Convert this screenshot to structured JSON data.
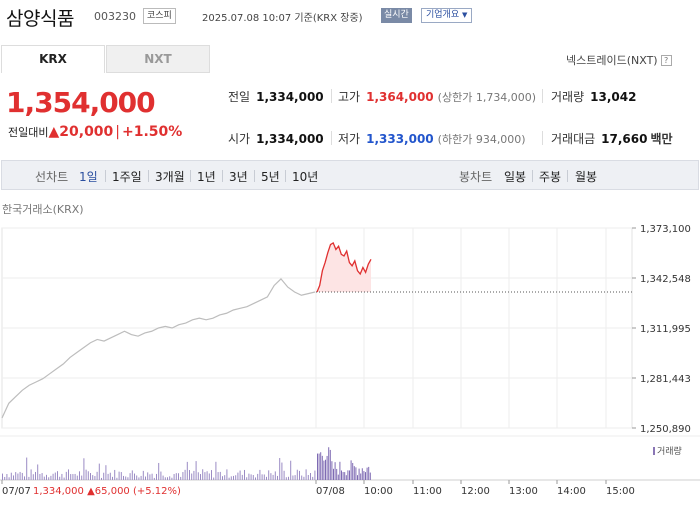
{
  "header": {
    "stock_name": "삼양식품",
    "stock_code": "003230",
    "market": "코스피",
    "datetime": "2025.07.08 10:07 기준(KRX 장중)",
    "realtime_label": "실시간",
    "company_overview": "기업개요"
  },
  "tabs": {
    "krx": "KRX",
    "nxt": "NXT"
  },
  "nextrade_link": "넥스트레이드(NXT)",
  "help_glyph": "?",
  "quote": {
    "price": "1,354,000",
    "change_label": "전일대비",
    "change_value": "20,000",
    "change_pct": "+1.50%",
    "up_symbol": "▲"
  },
  "metrics": {
    "prev_close_label": "전일",
    "prev_close": "1,334,000",
    "high_label": "고가",
    "high": "1,364,000",
    "upper_limit": "(상한가 1,734,000)",
    "volume_label": "거래량",
    "volume": "13,042",
    "open_label": "시가",
    "open": "1,334,000",
    "low_label": "저가",
    "low": "1,333,000",
    "lower_limit": "(하한가 934,000)",
    "trade_value_label": "거래대금",
    "trade_value": "17,660",
    "trade_value_unit": "백만"
  },
  "period_bar": {
    "line_label": "선차트",
    "line_options": [
      "1일",
      "1주일",
      "3개월",
      "1년",
      "3년",
      "5년",
      "10년"
    ],
    "selected": "1일",
    "candle_label": "봉차트",
    "candle_options": [
      "일봉",
      "주봉",
      "월봉"
    ]
  },
  "chart_data": {
    "type": "line",
    "source_label": "한국거래소(KRX)",
    "y_ticks": [
      "1,373,100",
      "1,342,548",
      "1,311,995",
      "1,281,443",
      "1,250,890"
    ],
    "ylim": [
      1250890,
      1373100
    ],
    "x_labels": [
      "07/07",
      "07/08",
      "10:00",
      "11:00",
      "12:00",
      "13:00",
      "14:00",
      "15:00"
    ],
    "volume_label": "거래량",
    "prev_day_summary": {
      "date": "07/07",
      "close": "1,334,000",
      "change": "65,000",
      "pct": "(+5.12%)"
    },
    "reference_line": 1334000,
    "series": [
      {
        "segment": "previous_day",
        "color": "#bdbdbd",
        "values": [
          1257000,
          1266000,
          1270000,
          1274000,
          1277000,
          1279000,
          1281000,
          1284000,
          1287000,
          1290000,
          1294000,
          1297000,
          1300000,
          1303000,
          1305000,
          1304000,
          1306000,
          1308000,
          1310000,
          1308000,
          1307000,
          1309000,
          1310000,
          1312000,
          1313000,
          1312000,
          1314000,
          1315000,
          1317000,
          1318000,
          1317000,
          1318000,
          1320000,
          1321000,
          1323000,
          1324000,
          1325000,
          1327000,
          1329000,
          1331000,
          1338000,
          1342000,
          1337000,
          1334000,
          1332000,
          1333000,
          1334000
        ]
      },
      {
        "segment": "today",
        "color": "#e03030",
        "values": [
          1334000,
          1338000,
          1347000,
          1352000,
          1358000,
          1363000,
          1364000,
          1360000,
          1362000,
          1357000,
          1356000,
          1359000,
          1352000,
          1350000,
          1353000,
          1347000,
          1345000,
          1349000,
          1346000,
          1351000,
          1354000
        ]
      }
    ]
  }
}
